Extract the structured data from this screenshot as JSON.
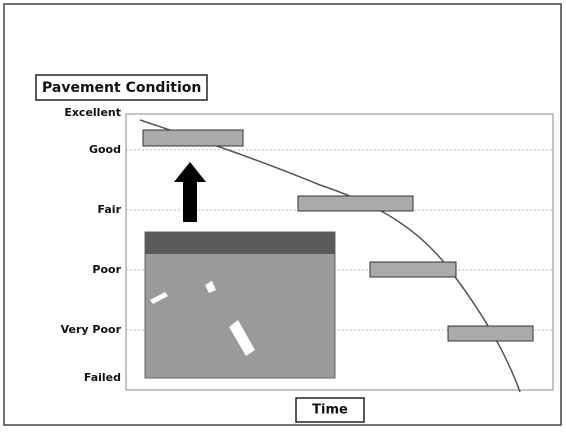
{
  "title": "Pavement Condition",
  "y_levels": [
    "Excellent",
    "Good",
    "Fair",
    "Poor",
    "Very Poor",
    "Failed"
  ],
  "x_label": "Time"
}
